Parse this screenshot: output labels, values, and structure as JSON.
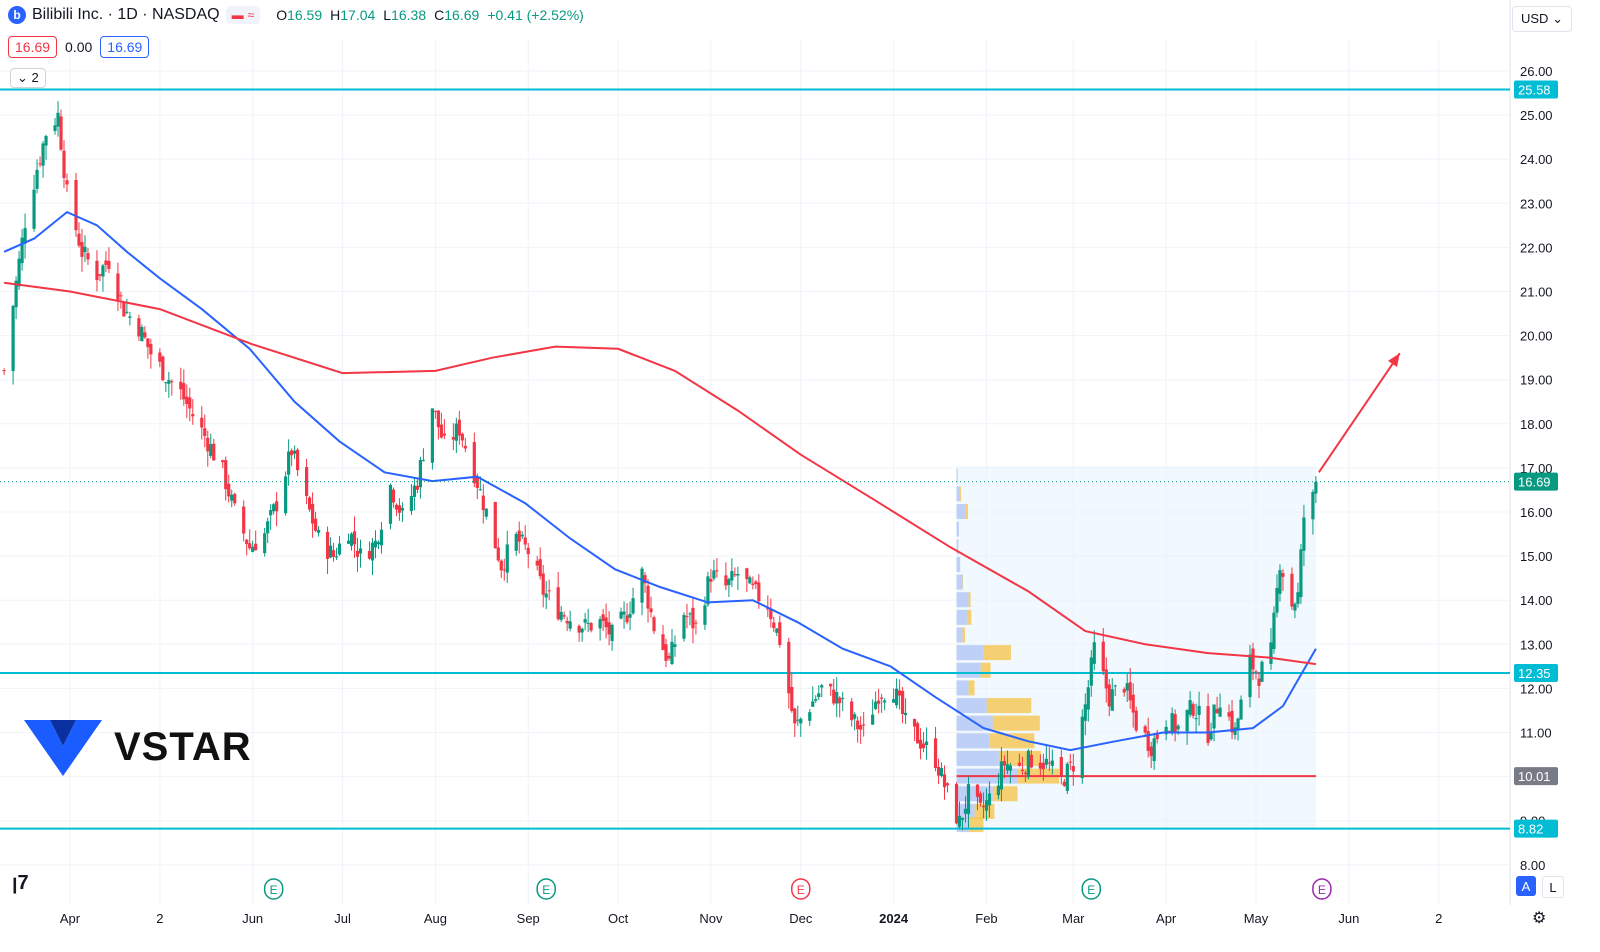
{
  "header": {
    "symbol_title": "Bilibili Inc. · 1D · NASDAQ",
    "logo_letter": "b",
    "ohlc": [
      {
        "key": "O",
        "value": "16.59"
      },
      {
        "key": "H",
        "value": "17.04"
      },
      {
        "key": "L",
        "value": "16.38"
      },
      {
        "key": "C",
        "value": "16.69"
      }
    ],
    "change": "+0.41 (+2.52%)",
    "sell_price": "16.69",
    "spread": "0.00",
    "buy_price": "16.69",
    "indicators_count": "2",
    "currency": "USD"
  },
  "brand": {
    "name": "VSTAR"
  },
  "toggles": {
    "auto": "A",
    "log": "L"
  },
  "colors": {
    "up": "#089981",
    "down": "#f23645",
    "ma_fast": "#2962ff",
    "ma_slow": "#f23645",
    "level": "#00bcd4",
    "poc": "#f23645",
    "profile_up": "#b2c6f5",
    "profile_va": "#f6c343",
    "profile_box": "#e3f2fd"
  },
  "chart_data": {
    "type": "candlestick",
    "y_ticks": [
      "26.00",
      "25.00",
      "24.00",
      "23.00",
      "22.00",
      "21.00",
      "20.00",
      "19.00",
      "18.00",
      "17.00",
      "16.00",
      "15.00",
      "14.00",
      "13.00",
      "12.00",
      "11.00",
      "10.00",
      "9.00",
      "8.00"
    ],
    "x_ticks": [
      {
        "label": "Apr",
        "date": "2023-04-01"
      },
      {
        "label": "2",
        "date": "2023-05-01"
      },
      {
        "label": "Jun",
        "date": "2023-06-01"
      },
      {
        "label": "Jul",
        "date": "2023-07-01"
      },
      {
        "label": "Aug",
        "date": "2023-08-01"
      },
      {
        "label": "Sep",
        "date": "2023-09-01"
      },
      {
        "label": "Oct",
        "date": "2023-10-01"
      },
      {
        "label": "Nov",
        "date": "2023-11-01"
      },
      {
        "label": "Dec",
        "date": "2023-12-01"
      },
      {
        "label": "2024",
        "date": "2024-01-01"
      },
      {
        "label": "Feb",
        "date": "2024-02-01"
      },
      {
        "label": "Mar",
        "date": "2024-03-01"
      },
      {
        "label": "Apr",
        "date": "2024-04-01"
      },
      {
        "label": "May",
        "date": "2024-05-01"
      },
      {
        "label": "Jun",
        "date": "2024-06-01"
      },
      {
        "label": "2",
        "date": "2024-07-01"
      }
    ],
    "ylim": [
      8.0,
      26.0
    ],
    "last_price": "16.69",
    "horizontal_levels": [
      {
        "value": 25.58,
        "label": "25.58",
        "style": "support-resistance"
      },
      {
        "value": 12.35,
        "label": "12.35",
        "style": "support-resistance"
      },
      {
        "value": 8.82,
        "label": "8.82",
        "style": "support-resistance"
      },
      {
        "value": 10.01,
        "label": "10.01",
        "style": "poc"
      }
    ],
    "close_path": [
      [
        "2023-03-10",
        19.2
      ],
      [
        "2023-03-14",
        21.2
      ],
      [
        "2023-03-17",
        22.6
      ],
      [
        "2023-03-21",
        23.8
      ],
      [
        "2023-03-24",
        24.6
      ],
      [
        "2023-03-28",
        25.0
      ],
      [
        "2023-03-31",
        23.2
      ],
      [
        "2023-04-05",
        21.9
      ],
      [
        "2023-04-10",
        21.4
      ],
      [
        "2023-04-14",
        21.7
      ],
      [
        "2023-04-19",
        20.6
      ],
      [
        "2023-04-24",
        20.2
      ],
      [
        "2023-04-28",
        19.6
      ],
      [
        "2023-05-03",
        19.1
      ],
      [
        "2023-05-08",
        18.7
      ],
      [
        "2023-05-12",
        18.2
      ],
      [
        "2023-05-17",
        17.6
      ],
      [
        "2023-05-22",
        16.9
      ],
      [
        "2023-05-26",
        16.0
      ],
      [
        "2023-05-31",
        15.2
      ],
      [
        "2023-06-05",
        15.5
      ],
      [
        "2023-06-09",
        16.2
      ],
      [
        "2023-06-14",
        17.4
      ],
      [
        "2023-06-19",
        16.2
      ],
      [
        "2023-06-23",
        15.4
      ],
      [
        "2023-06-28",
        15.0
      ],
      [
        "2023-07-03",
        15.6
      ],
      [
        "2023-07-07",
        15.0
      ],
      [
        "2023-07-12",
        15.3
      ],
      [
        "2023-07-17",
        16.6
      ],
      [
        "2023-07-21",
        15.9
      ],
      [
        "2023-07-26",
        16.7
      ],
      [
        "2023-07-31",
        18.4
      ],
      [
        "2023-08-04",
        17.5
      ],
      [
        "2023-08-09",
        17.9
      ],
      [
        "2023-08-14",
        16.9
      ],
      [
        "2023-08-18",
        16.0
      ],
      [
        "2023-08-23",
        14.8
      ],
      [
        "2023-08-28",
        15.4
      ],
      [
        "2023-09-01",
        15.1
      ],
      [
        "2023-09-06",
        14.2
      ],
      [
        "2023-09-11",
        13.8
      ],
      [
        "2023-09-15",
        13.6
      ],
      [
        "2023-09-20",
        13.4
      ],
      [
        "2023-09-25",
        13.5
      ],
      [
        "2023-09-29",
        13.2
      ],
      [
        "2023-10-04",
        13.7
      ],
      [
        "2023-10-09",
        14.6
      ],
      [
        "2023-10-13",
        13.4
      ],
      [
        "2023-10-18",
        12.6
      ],
      [
        "2023-10-23",
        13.7
      ],
      [
        "2023-10-27",
        13.4
      ],
      [
        "2023-11-01",
        14.6
      ],
      [
        "2023-11-06",
        14.3
      ],
      [
        "2023-11-10",
        14.6
      ],
      [
        "2023-11-15",
        14.2
      ],
      [
        "2023-11-20",
        13.9
      ],
      [
        "2023-11-24",
        13.1
      ],
      [
        "2023-11-29",
        11.1
      ],
      [
        "2023-12-04",
        11.6
      ],
      [
        "2023-12-08",
        12.0
      ],
      [
        "2023-12-13",
        11.8
      ],
      [
        "2023-12-18",
        11.3
      ],
      [
        "2023-12-22",
        11.0
      ],
      [
        "2023-12-27",
        11.9
      ],
      [
        "2024-01-01",
        12.0
      ],
      [
        "2024-01-05",
        11.2
      ],
      [
        "2024-01-10",
        10.8
      ],
      [
        "2024-01-15",
        10.4
      ],
      [
        "2024-01-19",
        9.6
      ],
      [
        "2024-01-23",
        8.95
      ],
      [
        "2024-01-26",
        9.6
      ],
      [
        "2024-01-30",
        9.2
      ],
      [
        "2024-02-02",
        9.5
      ],
      [
        "2024-02-07",
        10.3
      ],
      [
        "2024-02-12",
        10.2
      ],
      [
        "2024-02-16",
        10.4
      ],
      [
        "2024-02-21",
        10.3
      ],
      [
        "2024-02-26",
        9.9
      ],
      [
        "2024-03-01",
        10.3
      ],
      [
        "2024-03-05",
        11.6
      ],
      [
        "2024-03-08",
        12.9
      ],
      [
        "2024-03-13",
        11.8
      ],
      [
        "2024-03-18",
        12.1
      ],
      [
        "2024-03-22",
        11.2
      ],
      [
        "2024-03-27",
        10.7
      ],
      [
        "2024-04-01",
        11.3
      ],
      [
        "2024-04-05",
        11.1
      ],
      [
        "2024-04-10",
        11.6
      ],
      [
        "2024-04-15",
        11.0
      ],
      [
        "2024-04-19",
        11.8
      ],
      [
        "2024-04-24",
        11.0
      ],
      [
        "2024-04-29",
        12.6
      ],
      [
        "2024-05-02",
        12.3
      ],
      [
        "2024-05-06",
        12.8
      ],
      [
        "2024-05-09",
        14.9
      ],
      [
        "2024-05-13",
        13.9
      ],
      [
        "2024-05-15",
        14.1
      ],
      [
        "2024-05-17",
        15.9
      ],
      [
        "2024-05-20",
        16.3
      ],
      [
        "2024-05-21",
        16.69
      ]
    ],
    "series": [
      {
        "kind": "ma_fast",
        "points": [
          [
            "2023-03-10",
            21.9
          ],
          [
            "2023-03-20",
            22.2
          ],
          [
            "2023-03-31",
            22.8
          ],
          [
            "2023-04-10",
            22.5
          ],
          [
            "2023-04-20",
            21.9
          ],
          [
            "2023-05-01",
            21.3
          ],
          [
            "2023-05-15",
            20.6
          ],
          [
            "2023-05-31",
            19.7
          ],
          [
            "2023-06-15",
            18.5
          ],
          [
            "2023-06-30",
            17.6
          ],
          [
            "2023-07-15",
            16.9
          ],
          [
            "2023-07-31",
            16.7
          ],
          [
            "2023-08-15",
            16.8
          ],
          [
            "2023-08-31",
            16.2
          ],
          [
            "2023-09-15",
            15.4
          ],
          [
            "2023-09-30",
            14.7
          ],
          [
            "2023-10-15",
            14.3
          ],
          [
            "2023-10-31",
            13.95
          ],
          [
            "2023-11-15",
            14.0
          ],
          [
            "2023-11-30",
            13.5
          ],
          [
            "2023-12-15",
            12.9
          ],
          [
            "2023-12-31",
            12.5
          ],
          [
            "2024-01-15",
            11.8
          ],
          [
            "2024-01-31",
            11.1
          ],
          [
            "2024-02-15",
            10.8
          ],
          [
            "2024-02-29",
            10.6
          ],
          [
            "2024-03-15",
            10.8
          ],
          [
            "2024-03-31",
            11.0
          ],
          [
            "2024-04-15",
            11.0
          ],
          [
            "2024-04-30",
            11.1
          ],
          [
            "2024-05-10",
            11.6
          ],
          [
            "2024-05-21",
            12.9
          ]
        ]
      },
      {
        "kind": "ma_slow",
        "points": [
          [
            "2023-03-10",
            21.2
          ],
          [
            "2023-04-01",
            21.0
          ],
          [
            "2023-05-01",
            20.6
          ],
          [
            "2023-06-01",
            19.8
          ],
          [
            "2023-07-01",
            19.15
          ],
          [
            "2023-08-01",
            19.2
          ],
          [
            "2023-08-20",
            19.5
          ],
          [
            "2023-09-10",
            19.75
          ],
          [
            "2023-10-01",
            19.7
          ],
          [
            "2023-10-20",
            19.2
          ],
          [
            "2023-11-10",
            18.3
          ],
          [
            "2023-12-01",
            17.3
          ],
          [
            "2023-12-25",
            16.3
          ],
          [
            "2024-01-20",
            15.2
          ],
          [
            "2024-02-15",
            14.2
          ],
          [
            "2024-03-05",
            13.3
          ],
          [
            "2024-03-25",
            13.0
          ],
          [
            "2024-04-15",
            12.8
          ],
          [
            "2024-05-05",
            12.7
          ],
          [
            "2024-05-21",
            12.55
          ]
        ]
      }
    ],
    "volume_profile": {
      "start": "2024-01-22",
      "end": "2024-05-21",
      "top": 17.04,
      "bottom": 8.82,
      "rows": [
        [
          16.8,
          0.02,
          0.0
        ],
        [
          16.4,
          0.06,
          0.02
        ],
        [
          16.0,
          0.15,
          0.05
        ],
        [
          15.6,
          0.04,
          0.0
        ],
        [
          15.2,
          0.03,
          0.0
        ],
        [
          14.8,
          0.06,
          0.0
        ],
        [
          14.4,
          0.1,
          0.01
        ],
        [
          14.0,
          0.2,
          0.04
        ],
        [
          13.6,
          0.18,
          0.08
        ],
        [
          13.2,
          0.1,
          0.05
        ],
        [
          12.8,
          0.45,
          0.55
        ],
        [
          12.4,
          0.4,
          0.2
        ],
        [
          12.0,
          0.2,
          0.12
        ],
        [
          11.6,
          0.5,
          0.9
        ],
        [
          11.2,
          0.6,
          0.95
        ],
        [
          10.8,
          0.55,
          0.9
        ],
        [
          10.4,
          0.7,
          0.85
        ],
        [
          10.0,
          1.0,
          0.85
        ],
        [
          9.6,
          0.6,
          0.5
        ],
        [
          9.2,
          0.3,
          0.4
        ],
        [
          8.9,
          0.2,
          0.3
        ]
      ]
    },
    "earnings_markers": [
      "2023-06-08",
      "2023-09-07",
      "2023-12-01",
      "2024-03-07",
      "2024-05-23"
    ],
    "projection_arrow": {
      "from": [
        "2024-05-22",
        16.9
      ],
      "to": [
        "2024-06-18",
        19.6
      ]
    }
  }
}
